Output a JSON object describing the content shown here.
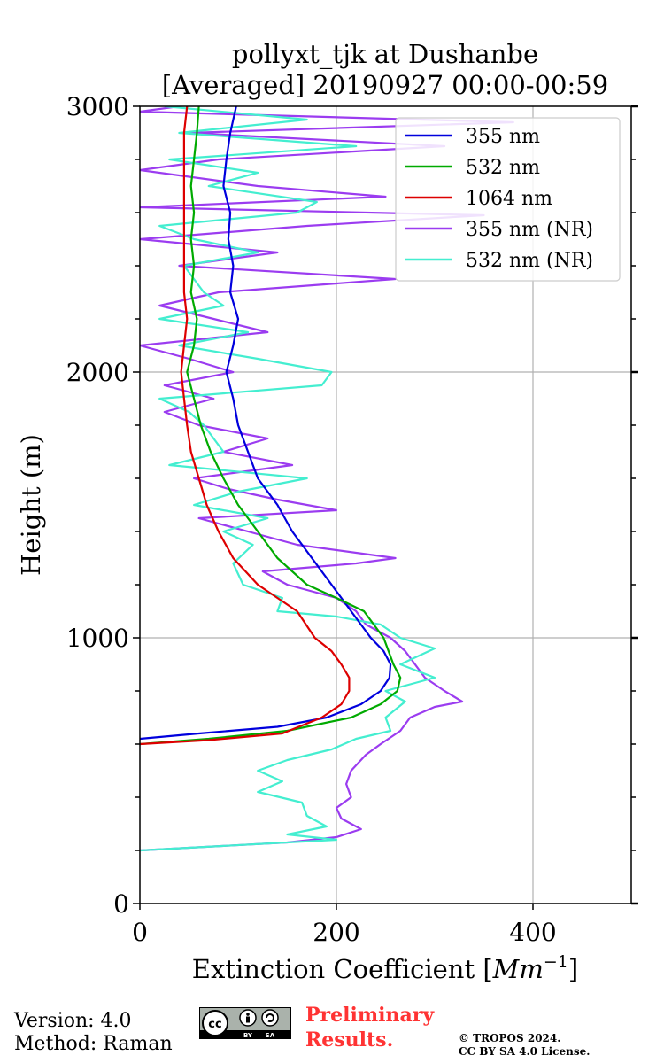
{
  "chart_data": {
    "type": "line",
    "title": [
      "pollyxt_tjk at Dushanbe",
      "[Averaged] 20190927 00:00-00:59"
    ],
    "xlabel": "Extinction Coefficient [Mm⁻¹]",
    "xlabel_parts": {
      "base": "Extinction Coefficient [",
      "unit": "Mm",
      "exp": "−1",
      "close": "]"
    },
    "ylabel": "Height (m)",
    "xlim": [
      0,
      500
    ],
    "ylim": [
      0,
      3000
    ],
    "xticks": [
      0,
      200,
      400
    ],
    "yticks": [
      0,
      1000,
      2000,
      3000
    ],
    "grid": true,
    "legend_position": "top-right",
    "series": [
      {
        "name": "355 nm",
        "color": "#0000dd",
        "points": [
          [
            0,
            620
          ],
          [
            60,
            640
          ],
          [
            140,
            665
          ],
          [
            190,
            700
          ],
          [
            225,
            750
          ],
          [
            245,
            800
          ],
          [
            254,
            850
          ],
          [
            255,
            900
          ],
          [
            248,
            950
          ],
          [
            235,
            1000
          ],
          [
            215,
            1100
          ],
          [
            195,
            1200
          ],
          [
            175,
            1300
          ],
          [
            155,
            1400
          ],
          [
            140,
            1500
          ],
          [
            120,
            1600
          ],
          [
            110,
            1700
          ],
          [
            100,
            1800
          ],
          [
            95,
            1900
          ],
          [
            88,
            2000
          ],
          [
            95,
            2100
          ],
          [
            100,
            2200
          ],
          [
            92,
            2300
          ],
          [
            95,
            2400
          ],
          [
            90,
            2500
          ],
          [
            92,
            2600
          ],
          [
            85,
            2700
          ],
          [
            88,
            2800
          ],
          [
            92,
            2900
          ],
          [
            98,
            3000
          ]
        ]
      },
      {
        "name": "532 nm",
        "color": "#00aa00",
        "points": [
          [
            0,
            600
          ],
          [
            70,
            620
          ],
          [
            150,
            650
          ],
          [
            215,
            700
          ],
          [
            245,
            750
          ],
          [
            262,
            800
          ],
          [
            265,
            850
          ],
          [
            258,
            900
          ],
          [
            248,
            1000
          ],
          [
            228,
            1100
          ],
          [
            200,
            1150
          ],
          [
            170,
            1200
          ],
          [
            140,
            1300
          ],
          [
            120,
            1400
          ],
          [
            100,
            1500
          ],
          [
            85,
            1600
          ],
          [
            72,
            1700
          ],
          [
            62,
            1800
          ],
          [
            55,
            1900
          ],
          [
            48,
            2000
          ],
          [
            55,
            2100
          ],
          [
            58,
            2200
          ],
          [
            52,
            2300
          ],
          [
            55,
            2400
          ],
          [
            52,
            2500
          ],
          [
            55,
            2600
          ],
          [
            52,
            2700
          ],
          [
            55,
            2800
          ],
          [
            58,
            2900
          ],
          [
            60,
            3000
          ]
        ]
      },
      {
        "name": "1064 nm",
        "color": "#dd0000",
        "points": [
          [
            0,
            600
          ],
          [
            70,
            615
          ],
          [
            145,
            640
          ],
          [
            185,
            700
          ],
          [
            205,
            750
          ],
          [
            213,
            800
          ],
          [
            213,
            850
          ],
          [
            205,
            900
          ],
          [
            195,
            950
          ],
          [
            178,
            1000
          ],
          [
            160,
            1100
          ],
          [
            120,
            1200
          ],
          [
            95,
            1300
          ],
          [
            80,
            1400
          ],
          [
            68,
            1500
          ],
          [
            60,
            1600
          ],
          [
            52,
            1700
          ],
          [
            48,
            1800
          ],
          [
            45,
            1900
          ],
          [
            42,
            2000
          ],
          [
            45,
            2100
          ],
          [
            48,
            2200
          ],
          [
            45,
            2300
          ],
          [
            45,
            2400
          ],
          [
            45,
            2500
          ],
          [
            45,
            2600
          ],
          [
            45,
            2700
          ],
          [
            45,
            2800
          ],
          [
            45,
            2900
          ],
          [
            48,
            3000
          ]
        ]
      },
      {
        "name": "355 nm (NR)",
        "color": "#9b3cf0",
        "points": [
          [
            0,
            200
          ],
          [
            150,
            230
          ],
          [
            200,
            250
          ],
          [
            225,
            280
          ],
          [
            205,
            320
          ],
          [
            200,
            360
          ],
          [
            215,
            400
          ],
          [
            210,
            450
          ],
          [
            215,
            500
          ],
          [
            230,
            560
          ],
          [
            245,
            600
          ],
          [
            265,
            650
          ],
          [
            275,
            700
          ],
          [
            300,
            740
          ],
          [
            328,
            760
          ],
          [
            310,
            800
          ],
          [
            290,
            850
          ],
          [
            280,
            900
          ],
          [
            270,
            950
          ],
          [
            255,
            1000
          ],
          [
            230,
            1050
          ],
          [
            220,
            1100
          ],
          [
            200,
            1150
          ],
          [
            150,
            1200
          ],
          [
            125,
            1250
          ],
          [
            220,
            1280
          ],
          [
            260,
            1300
          ],
          [
            160,
            1350
          ],
          [
            110,
            1400
          ],
          [
            60,
            1450
          ],
          [
            200,
            1480
          ],
          [
            140,
            1520
          ],
          [
            90,
            1560
          ],
          [
            55,
            1600
          ],
          [
            155,
            1650
          ],
          [
            85,
            1700
          ],
          [
            130,
            1750
          ],
          [
            60,
            1800
          ],
          [
            25,
            1850
          ],
          [
            75,
            1900
          ],
          [
            25,
            1950
          ],
          [
            95,
            2000
          ],
          [
            50,
            2050
          ],
          [
            0,
            2100
          ],
          [
            130,
            2150
          ],
          [
            75,
            2200
          ],
          [
            20,
            2250
          ],
          [
            80,
            2300
          ],
          [
            260,
            2350
          ],
          [
            40,
            2400
          ],
          [
            140,
            2450
          ],
          [
            0,
            2500
          ],
          [
            170,
            2550
          ],
          [
            350,
            2590
          ],
          [
            0,
            2620
          ],
          [
            250,
            2660
          ],
          [
            120,
            2700
          ],
          [
            0,
            2760
          ],
          [
            80,
            2800
          ],
          [
            310,
            2850
          ],
          [
            50,
            2900
          ],
          [
            380,
            2940
          ],
          [
            0,
            2980
          ],
          [
            40,
            3000
          ]
        ]
      },
      {
        "name": "532 nm (NR)",
        "color": "#44eed0",
        "points": [
          [
            0,
            200
          ],
          [
            200,
            240
          ],
          [
            150,
            260
          ],
          [
            190,
            290
          ],
          [
            170,
            330
          ],
          [
            165,
            380
          ],
          [
            120,
            420
          ],
          [
            145,
            460
          ],
          [
            120,
            500
          ],
          [
            150,
            540
          ],
          [
            195,
            580
          ],
          [
            220,
            620
          ],
          [
            255,
            650
          ],
          [
            250,
            700
          ],
          [
            270,
            760
          ],
          [
            250,
            800
          ],
          [
            300,
            850
          ],
          [
            265,
            900
          ],
          [
            300,
            960
          ],
          [
            265,
            1000
          ],
          [
            245,
            1050
          ],
          [
            200,
            1080
          ],
          [
            140,
            1100
          ],
          [
            145,
            1150
          ],
          [
            105,
            1200
          ],
          [
            95,
            1280
          ],
          [
            115,
            1350
          ],
          [
            85,
            1400
          ],
          [
            130,
            1450
          ],
          [
            55,
            1500
          ],
          [
            100,
            1550
          ],
          [
            170,
            1600
          ],
          [
            30,
            1650
          ],
          [
            85,
            1700
          ],
          [
            65,
            1800
          ],
          [
            50,
            1850
          ],
          [
            20,
            1900
          ],
          [
            185,
            1950
          ],
          [
            195,
            2000
          ],
          [
            120,
            2050
          ],
          [
            40,
            2100
          ],
          [
            110,
            2150
          ],
          [
            20,
            2200
          ],
          [
            85,
            2250
          ],
          [
            65,
            2300
          ],
          [
            45,
            2400
          ],
          [
            120,
            2450
          ],
          [
            55,
            2500
          ],
          [
            20,
            2550
          ],
          [
            160,
            2600
          ],
          [
            180,
            2640
          ],
          [
            70,
            2700
          ],
          [
            120,
            2750
          ],
          [
            30,
            2800
          ],
          [
            220,
            2850
          ],
          [
            40,
            2900
          ],
          [
            170,
            2950
          ],
          [
            25,
            3000
          ]
        ]
      }
    ]
  },
  "footer": {
    "version": "Version: 4.0",
    "method": "Method: Raman",
    "preliminary_1": "Preliminary",
    "preliminary_2": "Results.",
    "copyright_1": "© TROPOS 2024.",
    "copyright_2": "CC BY SA 4.0 License.",
    "badge_by": "BY",
    "badge_sa": "SA"
  },
  "colors": {
    "preliminary": "#ff3333",
    "grid": "#b0b0b0",
    "legend_border": "#cccccc"
  }
}
